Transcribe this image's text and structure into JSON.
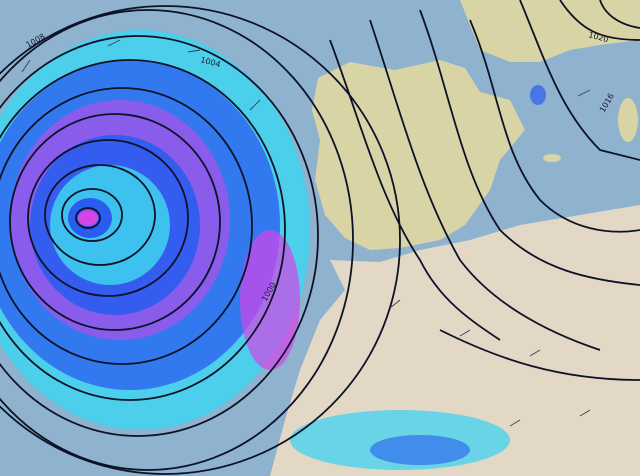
{
  "map": {
    "colors": {
      "ocean": "#8fb2cf",
      "land_iberia": "#d9d4a6",
      "land_africa": "#e3d8c6",
      "precip_light": "#3fd3f0",
      "precip_moderate": "#2a5cf0",
      "precip_heavy": "#d445e8",
      "isobar": "#0d1226"
    },
    "isobar_labels": [
      "1008",
      "1004",
      "1020",
      "1016",
      "1000"
    ],
    "features": [
      "low-pressure-center",
      "isobars",
      "precipitation",
      "wind-arrows"
    ]
  }
}
